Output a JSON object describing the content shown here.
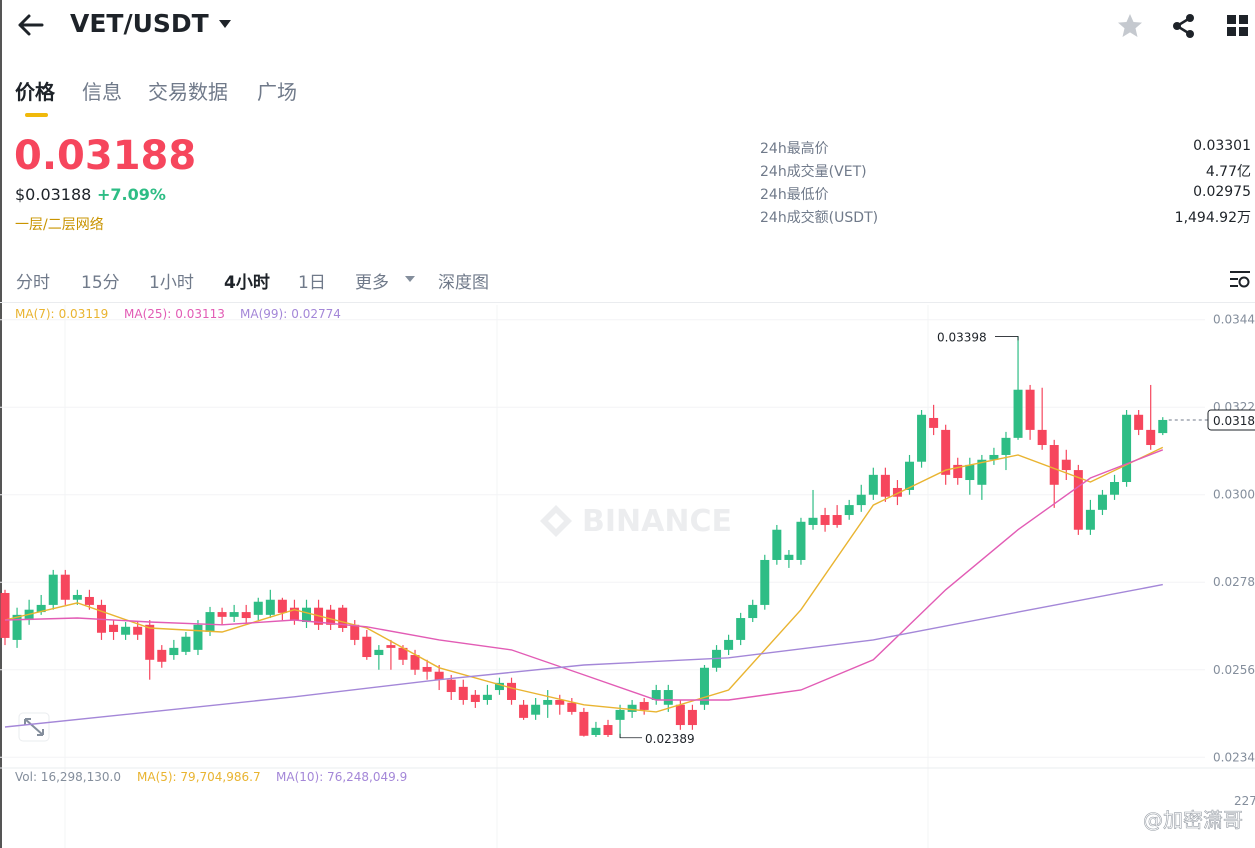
{
  "header": {
    "pair": "VET/USDT"
  },
  "tabs": [
    "价格",
    "信息",
    "交易数据",
    "广场"
  ],
  "price": {
    "last": "0.03188",
    "usd": "$0.03188",
    "change": "+7.09%",
    "tag": "一层/二层网络"
  },
  "stats": [
    {
      "label": "24h最高价",
      "value": "0.03301"
    },
    {
      "label": "24h成交量(VET)",
      "value": "4.77亿"
    },
    {
      "label": "24h最低价",
      "value": "0.02975"
    },
    {
      "label": "24h成交额(USDT)",
      "value": "1,494.92万"
    }
  ],
  "intervals": [
    "分时",
    "15分",
    "1小时",
    "4小时",
    "1日",
    "更多",
    "深度图"
  ],
  "chart_data": {
    "type": "candlestick",
    "candles": {
      "open": [
        0.02753,
        0.02635,
        0.02685,
        0.02705,
        0.02723,
        0.02799,
        0.02736,
        0.02743,
        0.02723,
        0.02673,
        0.02648,
        0.02668,
        0.02673,
        0.0261,
        0.02597,
        0.02605,
        0.0261,
        0.02655,
        0.02705,
        0.02693,
        0.02705,
        0.02698,
        0.02698,
        0.02736,
        0.02716,
        0.0268,
        0.02716,
        0.02711,
        0.02716,
        0.02673,
        0.02643,
        0.02597,
        0.02622,
        0.02615,
        0.02597,
        0.02567,
        0.02555,
        0.02535,
        0.02517,
        0.02497,
        0.02484,
        0.02509,
        0.02527,
        0.02472,
        0.02447,
        0.02472,
        0.02484,
        0.02477,
        0.02454,
        0.02396,
        0.02421,
        0.02434,
        0.02454,
        0.02479,
        0.02484,
        0.02472,
        0.02472,
        0.02459,
        0.02472,
        0.02565,
        0.0261,
        0.02635,
        0.0269,
        0.02723,
        0.02836,
        0.02836,
        0.02836,
        0.02924,
        0.02949,
        0.02949,
        0.02949,
        0.02974,
        0.03,
        0.0305,
        0.03017,
        0.03012,
        0.03083,
        0.03193,
        0.03163,
        0.03075,
        0.03037,
        0.03025,
        0.03088,
        0.031,
        0.03143,
        0.03264,
        0.03163,
        0.03125,
        0.03088,
        0.03062,
        0.02912,
        0.02962,
        0.03,
        0.03032,
        0.03201,
        0.03163,
        0.03155
      ],
      "high": [
        0.02761,
        0.02716,
        0.02736,
        0.02748,
        0.02811,
        0.02811,
        0.02761,
        0.02761,
        0.02736,
        0.02685,
        0.0268,
        0.0268,
        0.02685,
        0.02622,
        0.02635,
        0.02655,
        0.02685,
        0.02718,
        0.02716,
        0.02723,
        0.02723,
        0.02741,
        0.02761,
        0.02741,
        0.02736,
        0.02736,
        0.02736,
        0.02723,
        0.02723,
        0.02685,
        0.0266,
        0.02622,
        0.02635,
        0.02622,
        0.0261,
        0.02585,
        0.02572,
        0.02547,
        0.02535,
        0.02509,
        0.02522,
        0.0254,
        0.0254,
        0.02484,
        0.02489,
        0.02509,
        0.02497,
        0.02489,
        0.02464,
        0.02429,
        0.02434,
        0.02472,
        0.02484,
        0.02489,
        0.02522,
        0.02522,
        0.02484,
        0.02472,
        0.02572,
        0.02622,
        0.02648,
        0.02703,
        0.02736,
        0.02849,
        0.02924,
        0.02861,
        0.02942,
        0.03012,
        0.02967,
        0.02974,
        0.02987,
        0.03025,
        0.03068,
        0.03068,
        0.03037,
        0.031,
        0.03213,
        0.03226,
        0.03176,
        0.03093,
        0.03093,
        0.031,
        0.03118,
        0.03158,
        0.03398,
        0.03276,
        0.03269,
        0.03138,
        0.03113,
        0.03075,
        0.02987,
        0.03012,
        0.0305,
        0.03213,
        0.03213,
        0.03276,
        0.03195
      ],
      "low": [
        0.02622,
        0.02615,
        0.02673,
        0.02698,
        0.02711,
        0.02723,
        0.02723,
        0.02711,
        0.02635,
        0.02635,
        0.02635,
        0.02635,
        0.02535,
        0.02565,
        0.02585,
        0.02597,
        0.02597,
        0.02645,
        0.02673,
        0.0268,
        0.02675,
        0.02685,
        0.0269,
        0.02685,
        0.02673,
        0.02665,
        0.0266,
        0.0266,
        0.02655,
        0.02622,
        0.02585,
        0.0256,
        0.0256,
        0.02572,
        0.02547,
        0.02535,
        0.02509,
        0.02484,
        0.02472,
        0.02464,
        0.02472,
        0.02497,
        0.02472,
        0.02434,
        0.02434,
        0.02439,
        0.02447,
        0.02447,
        0.02392,
        0.02391,
        0.02391,
        0.02389,
        0.02439,
        0.02447,
        0.02472,
        0.02454,
        0.02409,
        0.02409,
        0.02459,
        0.02555,
        0.02597,
        0.02622,
        0.0268,
        0.02711,
        0.02824,
        0.02816,
        0.02824,
        0.02912,
        0.02907,
        0.02917,
        0.02937,
        0.02957,
        0.02987,
        0.02982,
        0.02974,
        0.03,
        0.03068,
        0.0315,
        0.03025,
        0.03025,
        0.03,
        0.02987,
        0.03075,
        0.03062,
        0.03138,
        0.03138,
        0.03113,
        0.02967,
        0.03037,
        0.02899,
        0.02899,
        0.02949,
        0.02987,
        0.0302,
        0.0315,
        0.03113,
        0.0315
      ],
      "close": [
        0.0264,
        0.02698,
        0.02711,
        0.02723,
        0.02799,
        0.02736,
        0.02748,
        0.02723,
        0.02653,
        0.02655,
        0.02668,
        0.02648,
        0.02585,
        0.0258,
        0.02615,
        0.02643,
        0.02673,
        0.02705,
        0.02693,
        0.02705,
        0.0269,
        0.02731,
        0.02736,
        0.02703,
        0.02685,
        0.02716,
        0.02673,
        0.02673,
        0.02665,
        0.02635,
        0.02592,
        0.0261,
        0.02615,
        0.02585,
        0.0256,
        0.02555,
        0.02535,
        0.02504,
        0.02484,
        0.02479,
        0.02497,
        0.02527,
        0.02484,
        0.02439,
        0.02472,
        0.02484,
        0.02472,
        0.02454,
        0.02394,
        0.02414,
        0.02396,
        0.02459,
        0.02472,
        0.02459,
        0.02509,
        0.02509,
        0.02421,
        0.02421,
        0.02565,
        0.0261,
        0.02635,
        0.0269,
        0.02723,
        0.02836,
        0.02912,
        0.02849,
        0.02932,
        0.02942,
        0.02924,
        0.02924,
        0.02974,
        0.03,
        0.0305,
        0.02995,
        0.02995,
        0.03083,
        0.03201,
        0.03168,
        0.0305,
        0.03042,
        0.03075,
        0.03088,
        0.031,
        0.03143,
        0.03264,
        0.03163,
        0.03125,
        0.03025,
        0.03062,
        0.02912,
        0.02962,
        0.03,
        0.03032,
        0.03201,
        0.03163,
        0.03125,
        0.03188
      ]
    },
    "up_color": "#2ebd85",
    "down_color": "#f6465d",
    "series": [
      {
        "name": "MA(7):",
        "legend_value": "0.03119",
        "color": "#e9b431",
        "x": [
          0,
          6,
          12,
          18,
          24,
          30,
          36,
          42,
          48,
          54,
          60,
          66,
          72,
          78,
          84,
          90,
          96
        ],
        "values": [
          0.02685,
          0.02728,
          0.02665,
          0.02655,
          0.02711,
          0.02665,
          0.02565,
          0.02514,
          0.02472,
          0.02454,
          0.02509,
          0.02711,
          0.02974,
          0.03062,
          0.031,
          0.03032,
          0.03119
        ]
      },
      {
        "name": "MA(25):",
        "legend_value": "0.03113",
        "color": "#e25cb5",
        "x": [
          0,
          6,
          12,
          18,
          24,
          30,
          36,
          42,
          48,
          54,
          60,
          66,
          72,
          78,
          84,
          90,
          96
        ],
        "values": [
          0.02685,
          0.0269,
          0.0268,
          0.02673,
          0.02685,
          0.02668,
          0.02635,
          0.0261,
          0.02547,
          0.02484,
          0.02484,
          0.02509,
          0.02585,
          0.02761,
          0.02912,
          0.03042,
          0.03113
        ]
      },
      {
        "name": "MA(99):",
        "legend_value": "0.02774",
        "color": "#a487d8",
        "x": [
          0,
          12,
          24,
          36,
          48,
          60,
          72,
          84,
          96
        ],
        "values": [
          0.02416,
          0.02454,
          0.02492,
          0.02535,
          0.02572,
          0.0259,
          0.02635,
          0.02705,
          0.02774
        ]
      }
    ],
    "ylim": [
      0.02313,
      0.03477
    ],
    "yticks": [
      0.0344,
      0.0322,
      {
        "value": 0.03,
        "label": "0.0300"
      },
      0.0278,
      0.0256,
      0.0234
    ],
    "grid": true,
    "last_price_label": "0.03188",
    "high_label": "0.03398",
    "low_label": "0.02389",
    "watermark": "BINANCE"
  },
  "volume": {
    "legend": [
      {
        "text": "Vol: 16,298,130.0",
        "color": "#848e9c"
      },
      {
        "text": "MA(5): 79,704,986.7",
        "color": "#e9b431"
      },
      {
        "text": "MA(10): 76,248,049.9",
        "color": "#a487d8"
      }
    ],
    "axis_label": "227"
  },
  "credit": "@加密潇哥"
}
